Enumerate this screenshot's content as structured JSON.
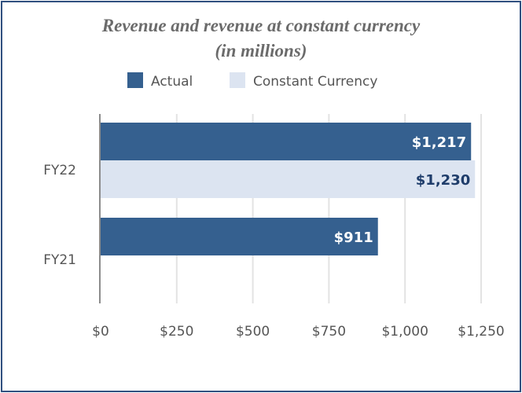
{
  "chart_data": {
    "type": "bar",
    "orientation": "horizontal",
    "title": "Revenue and revenue at constant currency",
    "subtitle": "(in millions)",
    "categories": [
      "FY22",
      "FY21"
    ],
    "series": [
      {
        "name": "Actual",
        "color": "#35608f",
        "label_color": "#ffffff",
        "values": [
          1217,
          911
        ],
        "labels": [
          "$1,217",
          "$911"
        ]
      },
      {
        "name": "Constant Currency",
        "color": "#dce4f1",
        "label_color": "#1f3d6b",
        "values": [
          1230,
          null
        ],
        "labels": [
          "$1,230",
          null
        ]
      }
    ],
    "xlim": [
      0,
      1250
    ],
    "xticks": [
      0,
      250,
      500,
      750,
      1000,
      1250
    ],
    "xtick_labels": [
      "$0",
      "$250",
      "$500",
      "$750",
      "$1,000",
      "$1,250"
    ],
    "grid": true,
    "legend": "top-center",
    "xlabel": "",
    "ylabel": ""
  }
}
